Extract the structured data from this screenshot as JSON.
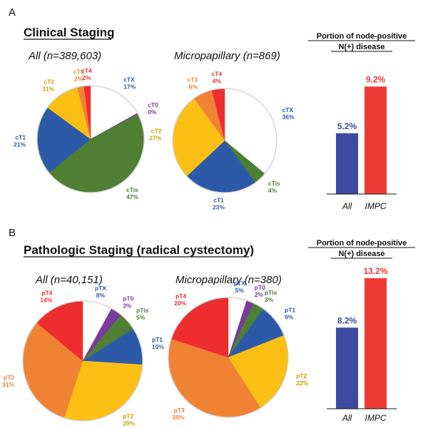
{
  "colors": {
    "cT4": "#ee2e2e",
    "cT3": "#f08234",
    "cT2": "#fcc015",
    "cT1": "#2d5aa8",
    "cTis": "#4e7f33",
    "cT0": "#7a3a9e",
    "cTX": "#ffffff",
    "pT4": "#ee2e2e",
    "pT3": "#f08234",
    "pT2": "#fcc015",
    "pT1": "#2d5aa8",
    "pTis": "#4e7f33",
    "pT0": "#7a3a9e",
    "pTX": "#ffffff",
    "bar_all": "#3c4aa0",
    "bar_impc": "#ee3b36",
    "label_cTX": "#2d5aa8",
    "label_pTX": "#2d5aa8"
  },
  "chart_data": [
    {
      "type": "pie",
      "panel": "A",
      "section_title": "Clinical Staging",
      "title": "All (n=389,603)",
      "slices": [
        {
          "label": "cTX",
          "value": 17,
          "display": "17%"
        },
        {
          "label": "cT0",
          "value": 0.4,
          "display": "0%"
        },
        {
          "label": "cTis",
          "value": 47,
          "display": "47%"
        },
        {
          "label": "cT1",
          "value": 21,
          "display": "21%"
        },
        {
          "label": "cT2",
          "value": 11,
          "display": "11%"
        },
        {
          "label": "cT3",
          "value": 2,
          "display": "2%"
        },
        {
          "label": "cT4",
          "value": 2,
          "display": "2%"
        }
      ]
    },
    {
      "type": "pie",
      "panel": "A",
      "title": "Micropapillary (n=869)",
      "slices": [
        {
          "label": "cTX",
          "value": 36,
          "display": "36%"
        },
        {
          "label": "cTis",
          "value": 4,
          "display": "4%"
        },
        {
          "label": "cT1",
          "value": 23,
          "display": "23%"
        },
        {
          "label": "cT2",
          "value": 27,
          "display": "27%"
        },
        {
          "label": "cT3",
          "value": 6,
          "display": "6%"
        },
        {
          "label": "cT4",
          "value": 4,
          "display": "4%"
        }
      ]
    },
    {
      "type": "bar",
      "panel": "A",
      "title_lines": [
        "Portion of node-positive",
        "N(+) disease"
      ],
      "categories": [
        "All",
        "IMPC"
      ],
      "values": [
        5.2,
        9.2
      ],
      "value_labels": [
        "5.2%",
        "9.2%"
      ],
      "ylim": [
        0,
        10.5
      ]
    },
    {
      "type": "pie",
      "panel": "B",
      "section_title": "Pathologic Staging (radical cystectomy)",
      "title": "All (n=40,151)",
      "slices": [
        {
          "label": "pTX",
          "value": 8,
          "display": "8%"
        },
        {
          "label": "pT0",
          "value": 3,
          "display": "3%"
        },
        {
          "label": "pTis",
          "value": 5,
          "display": "5%"
        },
        {
          "label": "pT1",
          "value": 10,
          "display": "10%"
        },
        {
          "label": "pT2",
          "value": 29,
          "display": "29%"
        },
        {
          "label": "pT3",
          "value": 31,
          "display": "31%"
        },
        {
          "label": "pT4",
          "value": 14,
          "display": "14%"
        }
      ]
    },
    {
      "type": "pie",
      "panel": "B",
      "title": "Micropapillary (n=380)",
      "slices": [
        {
          "label": "pTX",
          "value": 5,
          "display": "5%"
        },
        {
          "label": "pT0",
          "value": 2,
          "display": "2%"
        },
        {
          "label": "pTis",
          "value": 3,
          "display": "3%"
        },
        {
          "label": "pT1",
          "value": 9,
          "display": "9%"
        },
        {
          "label": "pT2",
          "value": 22,
          "display": "22%"
        },
        {
          "label": "pT3",
          "value": 39,
          "display": "39%"
        },
        {
          "label": "pT4",
          "value": 20,
          "display": "20%"
        }
      ]
    },
    {
      "type": "bar",
      "panel": "B",
      "title_lines": [
        "Portion of node-positive",
        "N(+) disease"
      ],
      "categories": [
        "All",
        "IMPC"
      ],
      "values": [
        8.2,
        13.2
      ],
      "value_labels": [
        "8.2%",
        "13.2%"
      ],
      "ylim": [
        0,
        14.5
      ]
    }
  ]
}
